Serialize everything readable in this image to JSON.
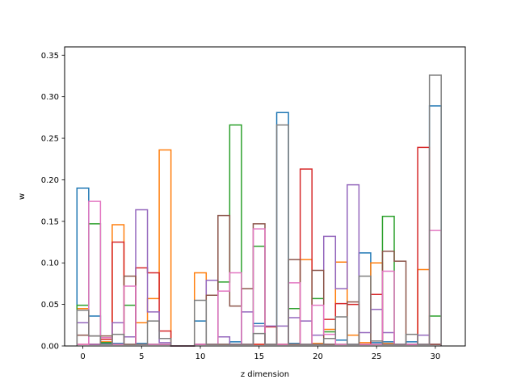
{
  "chart_data": {
    "type": "step-histogram",
    "title": "",
    "xlabel": "z dimension",
    "ylabel": "w",
    "xlim": [
      -1.55,
      32.55
    ],
    "ylim": [
      0,
      0.36
    ],
    "xticks": [
      0,
      5,
      10,
      15,
      20,
      25,
      30
    ],
    "yticks": [
      0.0,
      0.05,
      0.1,
      0.15,
      0.2,
      0.25,
      0.3,
      0.35
    ],
    "ytick_labels": [
      "0.00",
      "0.05",
      "0.10",
      "0.15",
      "0.20",
      "0.25",
      "0.30",
      "0.35"
    ],
    "bin_width": 1,
    "grid": false,
    "series": [
      {
        "color": "#1f77b4",
        "values": [
          0.19,
          0.036,
          0.003,
          0.003,
          0.002,
          0.003,
          0.002,
          0.002,
          0.0,
          0.0,
          0.03,
          0.002,
          0.002,
          0.005,
          0.002,
          0.027,
          0.002,
          0.281,
          0.003,
          0.002,
          0.002,
          0.002,
          0.007,
          0.002,
          0.112,
          0.004,
          0.005,
          0.002,
          0.005,
          0.002,
          0.289
        ]
      },
      {
        "color": "#ff7f0e",
        "values": [
          0.045,
          0.002,
          0.005,
          0.146,
          0.002,
          0.028,
          0.057,
          0.236,
          0.0,
          0.0,
          0.088,
          0.002,
          0.002,
          0.002,
          0.002,
          0.002,
          0.002,
          0.002,
          0.002,
          0.104,
          0.003,
          0.02,
          0.101,
          0.013,
          0.004,
          0.1,
          0.003,
          0.002,
          0.002,
          0.092,
          0.002
        ]
      },
      {
        "color": "#2ca02c",
        "values": [
          0.049,
          0.147,
          0.004,
          0.002,
          0.049,
          0.002,
          0.002,
          0.002,
          0.0,
          0.0,
          0.002,
          0.002,
          0.077,
          0.266,
          0.002,
          0.12,
          0.002,
          0.002,
          0.045,
          0.002,
          0.057,
          0.017,
          0.002,
          0.002,
          0.002,
          0.002,
          0.156,
          0.002,
          0.002,
          0.002,
          0.036
        ]
      },
      {
        "color": "#d62728",
        "values": [
          0.002,
          0.002,
          0.008,
          0.125,
          0.002,
          0.094,
          0.088,
          0.018,
          0.0,
          0.0,
          0.002,
          0.002,
          0.002,
          0.002,
          0.002,
          0.002,
          0.023,
          0.002,
          0.002,
          0.213,
          0.002,
          0.032,
          0.051,
          0.05,
          0.002,
          0.062,
          0.002,
          0.002,
          0.002,
          0.239,
          0.002
        ]
      },
      {
        "color": "#9467bd",
        "values": [
          0.028,
          0.002,
          0.002,
          0.028,
          0.011,
          0.164,
          0.041,
          0.004,
          0.0,
          0.0,
          0.002,
          0.079,
          0.011,
          0.002,
          0.041,
          0.024,
          0.024,
          0.024,
          0.034,
          0.03,
          0.013,
          0.132,
          0.069,
          0.194,
          0.016,
          0.044,
          0.016,
          0.002,
          0.002,
          0.013,
          0.002
        ]
      },
      {
        "color": "#8c564b",
        "values": [
          0.013,
          0.012,
          0.012,
          0.002,
          0.084,
          0.002,
          0.002,
          0.002,
          0.0,
          0.0,
          0.002,
          0.061,
          0.157,
          0.048,
          0.069,
          0.147,
          0.002,
          0.002,
          0.104,
          0.002,
          0.091,
          0.002,
          0.002,
          0.053,
          0.002,
          0.002,
          0.114,
          0.102,
          0.002,
          0.002,
          0.002
        ]
      },
      {
        "color": "#e377c2",
        "values": [
          0.002,
          0.174,
          0.01,
          0.002,
          0.072,
          0.002,
          0.002,
          0.002,
          0.0,
          0.0,
          0.002,
          0.002,
          0.066,
          0.088,
          0.002,
          0.141,
          0.002,
          0.002,
          0.076,
          0.002,
          0.049,
          0.014,
          0.002,
          0.002,
          0.002,
          0.002,
          0.09,
          0.002,
          0.002,
          0.002,
          0.139
        ]
      },
      {
        "color": "#7f7f7f",
        "values": [
          0.043,
          0.012,
          0.002,
          0.014,
          0.002,
          0.002,
          0.03,
          0.009,
          0.0,
          0.0,
          0.055,
          0.002,
          0.002,
          0.002,
          0.002,
          0.015,
          0.002,
          0.266,
          0.002,
          0.002,
          0.002,
          0.009,
          0.035,
          0.002,
          0.084,
          0.006,
          0.002,
          0.002,
          0.014,
          0.002,
          0.326
        ]
      }
    ]
  }
}
